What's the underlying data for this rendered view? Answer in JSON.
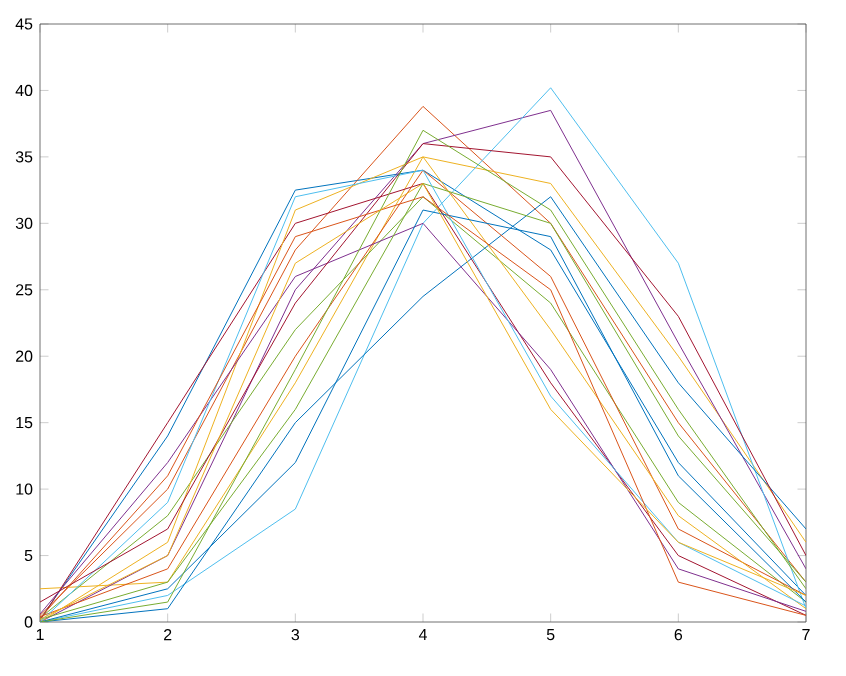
{
  "chart_data": {
    "type": "line",
    "x": [
      1,
      2,
      3,
      4,
      5,
      6,
      7
    ],
    "xlim": [
      1,
      7
    ],
    "ylim": [
      0,
      45
    ],
    "xticks": [
      1,
      2,
      3,
      4,
      5,
      6,
      7
    ],
    "yticks": [
      0,
      5,
      10,
      15,
      20,
      25,
      30,
      35,
      40,
      45
    ],
    "grid": false,
    "marker": "none",
    "line_style": "solid",
    "series": [
      {
        "color": "#0072bd",
        "values": [
          0.2,
          14,
          32.5,
          34,
          28,
          12,
          2
        ]
      },
      {
        "color": "#d95319",
        "values": [
          0.5,
          10,
          28,
          38.8,
          30,
          15,
          3
        ]
      },
      {
        "color": "#edb120",
        "values": [
          2.5,
          3,
          18,
          35,
          33,
          20,
          6
        ]
      },
      {
        "color": "#7e2f8e",
        "values": [
          0,
          5,
          25,
          36,
          38.5,
          21,
          4
        ]
      },
      {
        "color": "#77ac30",
        "values": [
          0.3,
          8,
          22,
          32,
          24,
          9,
          1.5
        ]
      },
      {
        "color": "#4dbeee",
        "values": [
          0,
          2,
          8.5,
          30,
          40.2,
          27,
          1
        ]
      },
      {
        "color": "#a2142f",
        "values": [
          0.1,
          15,
          30,
          33,
          18,
          5,
          0.5
        ]
      },
      {
        "color": "#0072bd",
        "values": [
          0,
          1,
          15,
          24.5,
          32,
          18,
          7
        ]
      },
      {
        "color": "#d95319",
        "values": [
          0.4,
          4,
          20,
          34,
          26,
          7,
          2
        ]
      },
      {
        "color": "#edb120",
        "values": [
          0,
          6,
          31,
          35,
          22,
          8,
          1
        ]
      },
      {
        "color": "#7e2f8e",
        "values": [
          0.6,
          12,
          26,
          30,
          19,
          4,
          0.8
        ]
      },
      {
        "color": "#77ac30",
        "values": [
          0.2,
          3,
          16,
          33,
          30,
          14,
          3
        ]
      },
      {
        "color": "#4dbeee",
        "values": [
          0,
          9,
          32,
          34,
          17,
          6,
          1.2
        ]
      },
      {
        "color": "#a2142f",
        "values": [
          1.5,
          7,
          24,
          36,
          35,
          23,
          5
        ]
      },
      {
        "color": "#0072bd",
        "values": [
          0,
          2.5,
          12,
          31,
          29,
          11,
          1.5
        ]
      },
      {
        "color": "#d95319",
        "values": [
          0.3,
          11,
          29,
          32,
          25,
          3,
          0.5
        ]
      },
      {
        "color": "#77ac30",
        "values": [
          0,
          1.5,
          19,
          37,
          31,
          16,
          2.5
        ]
      },
      {
        "color": "#edb120",
        "values": [
          0.2,
          5,
          27,
          33,
          16,
          6,
          2
        ]
      }
    ]
  }
}
